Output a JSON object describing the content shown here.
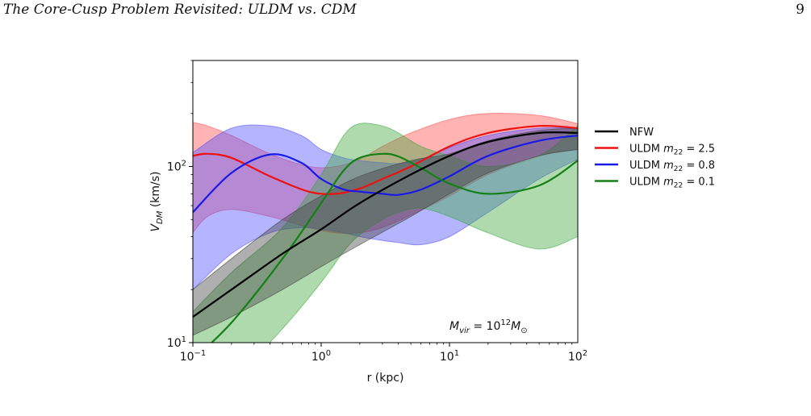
{
  "page": {
    "running_head": "The Core-Cusp Problem Revisited: ULDM vs. CDM",
    "page_number": "9"
  },
  "chart_data": {
    "type": "line",
    "title": "",
    "xlabel": "r (kpc)",
    "ylabel_parts": {
      "base": "V",
      "sub": "DM",
      "unit": " (km/s)"
    },
    "xscale": "log",
    "yscale": "log",
    "xlim": [
      0.1,
      100
    ],
    "ylim": [
      10,
      400
    ],
    "xticks": [
      {
        "value": 0.1,
        "base": "10",
        "exp": "−1"
      },
      {
        "value": 1,
        "base": "10",
        "exp": "0"
      },
      {
        "value": 10,
        "base": "10",
        "exp": "1"
      },
      {
        "value": 100,
        "base": "10",
        "exp": "2"
      }
    ],
    "yticks": [
      {
        "value": 10,
        "base": "10",
        "exp": "1"
      },
      {
        "value": 100,
        "base": "10",
        "exp": "2"
      }
    ],
    "legend_position": "outside-right",
    "annotation": {
      "pre": "M",
      "sub": "vir",
      "eq": " = 10",
      "sup": "12",
      "m": "M",
      "sub2": "⊙"
    },
    "series": [
      {
        "name": "NFW",
        "legend_label": "NFW",
        "color": "#000000",
        "band_color": "#404040",
        "x": [
          0.1,
          0.2,
          0.5,
          1,
          2,
          5,
          10,
          20,
          50,
          100
        ],
        "y": [
          14,
          20,
          32,
          44,
          62,
          90,
          115,
          138,
          155,
          155
        ],
        "lower": [
          11,
          14,
          20,
          27,
          36,
          52,
          70,
          92,
          115,
          125
        ],
        "upper": [
          20,
          30,
          50,
          68,
          88,
          108,
          118,
          140,
          160,
          165
        ]
      },
      {
        "name": "ULDM m22 = 2.5",
        "legend_label": "ULDM m",
        "legend_sub": "22",
        "legend_val": " = 2.5",
        "color": "#ee1111",
        "band_color": "#ff4a4a",
        "x": [
          0.1,
          0.13,
          0.2,
          0.4,
          0.8,
          1.3,
          2,
          3,
          5,
          10,
          20,
          50,
          100
        ],
        "y": [
          115,
          118,
          112,
          88,
          72,
          70,
          75,
          85,
          100,
          130,
          155,
          170,
          165
        ],
        "lower": [
          42,
          52,
          57,
          52,
          45,
          42,
          42,
          45,
          53,
          68,
          90,
          115,
          125
        ],
        "upper": [
          178,
          170,
          150,
          118,
          100,
          100,
          110,
          130,
          155,
          185,
          200,
          195,
          175
        ]
      },
      {
        "name": "ULDM m22 = 0.8",
        "legend_label": "ULDM m",
        "legend_sub": "22",
        "legend_val": " = 0.8",
        "color": "#1a1ae6",
        "band_color": "#4f4fff",
        "x": [
          0.1,
          0.2,
          0.4,
          0.7,
          1,
          1.5,
          2,
          3,
          4,
          6,
          10,
          20,
          50,
          100
        ],
        "y": [
          55,
          92,
          117,
          105,
          85,
          74,
          72,
          70,
          69,
          74,
          88,
          115,
          140,
          150
        ],
        "lower": [
          20,
          32,
          42,
          45,
          44,
          42,
          40,
          38,
          37,
          36,
          40,
          55,
          85,
          110
        ],
        "upper": [
          120,
          165,
          170,
          150,
          125,
          112,
          108,
          105,
          104,
          110,
          128,
          150,
          165,
          165
        ]
      },
      {
        "name": "ULDM m22 = 0.1",
        "legend_label": "ULDM m",
        "legend_sub": "22",
        "legend_val": " = 0.1",
        "color": "#158015",
        "band_color": "#3da63d",
        "x": [
          0.1,
          0.2,
          0.5,
          1,
          1.5,
          2,
          3,
          4,
          6,
          10,
          20,
          50,
          100
        ],
        "y": [
          8,
          13,
          30,
          62,
          95,
          112,
          118,
          114,
          98,
          80,
          70,
          78,
          108
        ],
        "lower": [
          4,
          6,
          12,
          22,
          33,
          41,
          50,
          55,
          58,
          52,
          42,
          34,
          40
        ],
        "upper": [
          15,
          25,
          45,
          90,
          150,
          175,
          170,
          155,
          130,
          115,
          100,
          115,
          170
        ]
      }
    ]
  }
}
